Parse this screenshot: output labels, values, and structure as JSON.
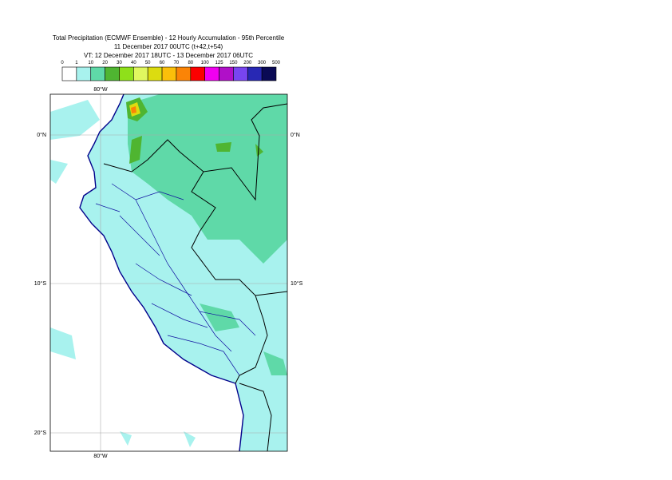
{
  "header": {
    "title": "Total Precipitation (ECMWF Ensemble) - 12 Hourly Accumulation - 95th Percentile",
    "subtitle": "11 December 2017 00UTC (t+42,t+54)",
    "valid_time": "VT: 12 December 2017 18UTC - 13 December 2017 06UTC"
  },
  "legend": {
    "labels": [
      "0",
      "1",
      "10",
      "20",
      "30",
      "40",
      "50",
      "60",
      "70",
      "80",
      "100",
      "125",
      "150",
      "200",
      "300",
      "500"
    ],
    "colors": [
      "#ffffff",
      "#a8f2ee",
      "#5fd9a8",
      "#4fb531",
      "#8fe01a",
      "#e0f75f",
      "#dcdc10",
      "#fbbf0a",
      "#fb8406",
      "#fb0000",
      "#f000f0",
      "#b010c8",
      "#7845f0",
      "#2828b4",
      "#0a0a55"
    ]
  },
  "map": {
    "lon_labels": [
      "80°W",
      "80°W"
    ],
    "lat_labels": [
      "0°N",
      "0°N",
      "10°S",
      "10°S",
      "20°S"
    ]
  }
}
